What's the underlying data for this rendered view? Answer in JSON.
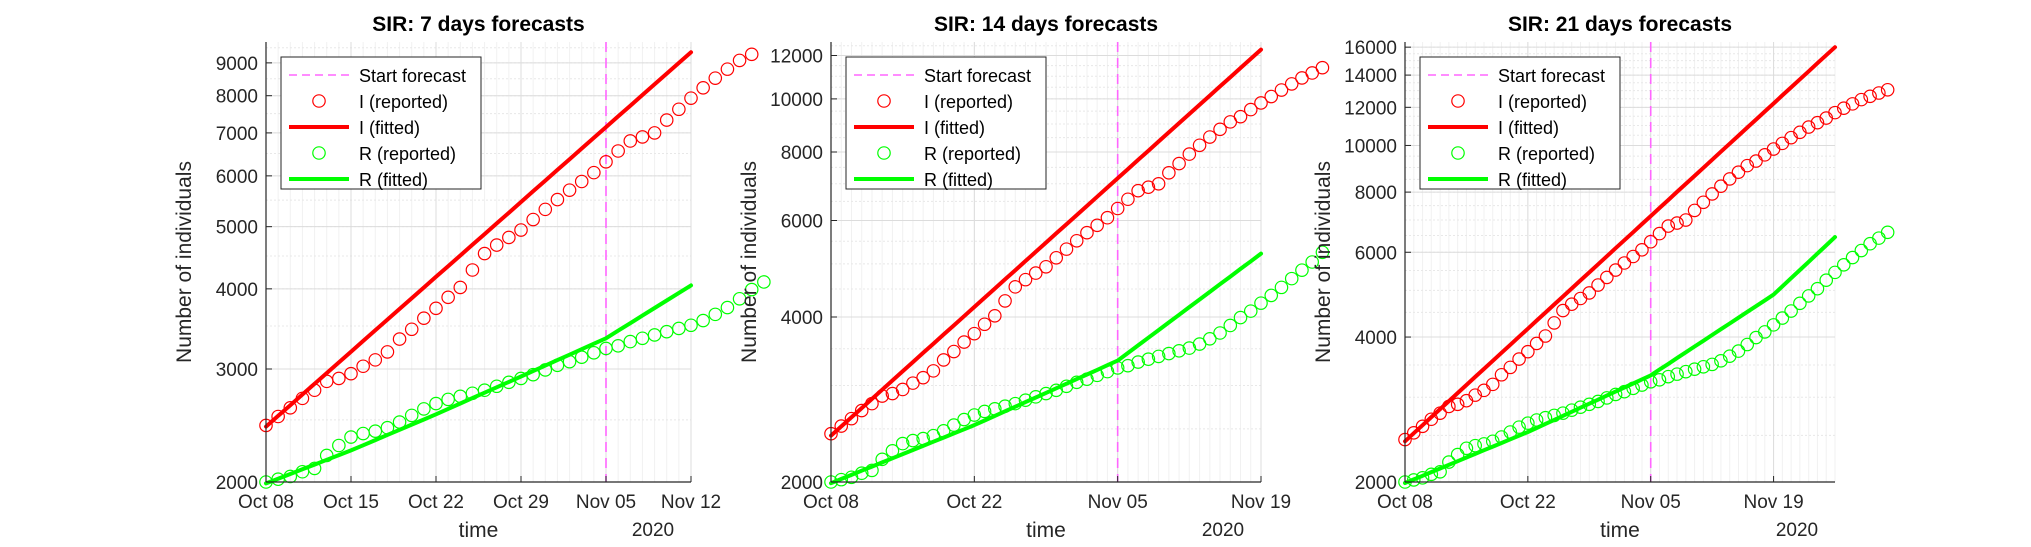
{
  "colors": {
    "infected": "#ff0000",
    "recovered": "#00ff00",
    "forecast": "#ff66ff",
    "axis": "#262626",
    "grid": "#e6e6e6"
  },
  "chart_data": [
    {
      "type": "line",
      "title": "SIR: 7 days forecasts",
      "xlabel": "time",
      "ylabel": "Number of individuals",
      "x_year_label": "2020",
      "yscale": "log",
      "xlim": [
        "2020-10-08",
        "2020-11-12"
      ],
      "ylim": [
        2000,
        9700
      ],
      "xticks": [
        "2020-10-08",
        "2020-10-15",
        "2020-10-22",
        "2020-10-29",
        "2020-11-05",
        "2020-11-12"
      ],
      "xtick_labels": [
        "Oct 08",
        "Oct 15",
        "Oct 22",
        "Oct 29",
        "Nov 05",
        "Nov 12"
      ],
      "yticks": [
        2000,
        3000,
        4000,
        5000,
        6000,
        7000,
        8000,
        9000
      ],
      "ytick_labels": [
        "2000",
        "3000",
        "4000",
        "5000",
        "6000",
        "7000",
        "8000",
        "9000"
      ],
      "forecast_start": "2020-11-05",
      "legend_position": "top-left",
      "legend": [
        "Start forecast",
        "I (reported)",
        "I (fitted)",
        "R (reported)",
        "R (fitted)"
      ],
      "series": [
        {
          "name": "I (reported)",
          "style": "markers",
          "color_key": "infected",
          "x_start": "2020-10-08",
          "values": [
            2450,
            2530,
            2610,
            2700,
            2780,
            2870,
            2900,
            2950,
            3030,
            3100,
            3190,
            3340,
            3460,
            3600,
            3730,
            3880,
            4020,
            4280,
            4540,
            4680,
            4810,
            4940,
            5130,
            5320,
            5510,
            5700,
            5880,
            6070,
            6310,
            6560,
            6800,
            6900,
            7000,
            7330,
            7620,
            7930,
            8230,
            8520,
            8800,
            9080,
            9280
          ]
        },
        {
          "name": "I (fitted)",
          "style": "line",
          "color_key": "infected",
          "x": [
            "2020-10-08",
            "2020-11-12"
          ],
          "values": [
            2440,
            9350
          ]
        },
        {
          "name": "R (reported)",
          "style": "markers",
          "color_key": "recovered",
          "x_start": "2020-10-08",
          "values": [
            2000,
            2020,
            2040,
            2075,
            2100,
            2200,
            2280,
            2350,
            2380,
            2400,
            2430,
            2480,
            2540,
            2600,
            2650,
            2690,
            2720,
            2750,
            2780,
            2820,
            2860,
            2900,
            2940,
            2990,
            3040,
            3080,
            3130,
            3180,
            3230,
            3260,
            3310,
            3350,
            3390,
            3430,
            3470,
            3510,
            3570,
            3650,
            3740,
            3860,
            3990,
            4100
          ]
        },
        {
          "name": "R (fitted)",
          "style": "line",
          "color_key": "recovered",
          "x": [
            "2020-10-08",
            "2020-10-15",
            "2020-10-22",
            "2020-10-29",
            "2020-11-05",
            "2020-11-12"
          ],
          "values": [
            1990,
            2240,
            2550,
            2920,
            3350,
            4050
          ]
        }
      ]
    },
    {
      "type": "line",
      "title": "SIR: 14 days forecasts",
      "xlabel": "time",
      "ylabel": "Number of individuals",
      "x_year_label": "2020",
      "yscale": "log",
      "xlim": [
        "2020-10-08",
        "2020-11-19"
      ],
      "ylim": [
        2000,
        12700
      ],
      "xticks": [
        "2020-10-08",
        "2020-10-22",
        "2020-11-05",
        "2020-11-19"
      ],
      "xtick_labels": [
        "Oct 08",
        "Oct 22",
        "Nov 05",
        "Nov 19"
      ],
      "yticks": [
        2000,
        4000,
        6000,
        8000,
        10000,
        12000
      ],
      "ytick_labels": [
        "2000",
        "4000",
        "6000",
        "8000",
        "10000",
        "12000"
      ],
      "forecast_start": "2020-11-05",
      "legend_position": "top-left",
      "legend": [
        "Start forecast",
        "I (reported)",
        "I (fitted)",
        "R (reported)",
        "R (fitted)"
      ],
      "series": [
        {
          "name": "I (reported)",
          "style": "markers",
          "color_key": "infected",
          "x_start": "2020-10-08",
          "values": [
            2450,
            2530,
            2610,
            2700,
            2780,
            2870,
            2900,
            2950,
            3030,
            3100,
            3190,
            3340,
            3460,
            3600,
            3730,
            3880,
            4020,
            4280,
            4540,
            4680,
            4810,
            4940,
            5130,
            5320,
            5510,
            5700,
            5880,
            6070,
            6310,
            6560,
            6800,
            6900,
            7000,
            7330,
            7620,
            7930,
            8230,
            8520,
            8800,
            9080,
            9280,
            9560,
            9830,
            10100,
            10380,
            10650,
            10920,
            11150,
            11400
          ]
        },
        {
          "name": "I (fitted)",
          "style": "line",
          "color_key": "infected",
          "x": [
            "2020-10-08",
            "2020-11-19"
          ],
          "values": [
            2430,
            12300
          ]
        },
        {
          "name": "R (reported)",
          "style": "markers",
          "color_key": "recovered",
          "x_start": "2020-10-08",
          "values": [
            2000,
            2020,
            2040,
            2075,
            2100,
            2200,
            2280,
            2350,
            2380,
            2400,
            2430,
            2480,
            2540,
            2600,
            2650,
            2690,
            2720,
            2750,
            2780,
            2820,
            2860,
            2900,
            2940,
            2990,
            3040,
            3080,
            3130,
            3180,
            3230,
            3260,
            3310,
            3350,
            3390,
            3430,
            3470,
            3510,
            3570,
            3650,
            3740,
            3860,
            3990,
            4100,
            4240,
            4380,
            4530,
            4700,
            4870,
            5040,
            5250
          ]
        },
        {
          "name": "R (fitted)",
          "style": "line",
          "color_key": "recovered",
          "x": [
            "2020-10-08",
            "2020-10-22",
            "2020-11-05",
            "2020-11-19"
          ],
          "values": [
            1990,
            2540,
            3330,
            5220
          ]
        }
      ]
    },
    {
      "type": "line",
      "title": "SIR: 21 days forecasts",
      "xlabel": "time",
      "ylabel": "Number of individuals",
      "x_year_label": "2020",
      "yscale": "log",
      "xlim": [
        "2020-10-08",
        "2020-11-26"
      ],
      "ylim": [
        2000,
        16400
      ],
      "xticks": [
        "2020-10-08",
        "2020-10-22",
        "2020-11-05",
        "2020-11-19"
      ],
      "xtick_labels": [
        "Oct 08",
        "Oct 22",
        "Nov 05",
        "Nov 19"
      ],
      "yticks": [
        2000,
        4000,
        6000,
        8000,
        10000,
        12000,
        14000,
        16000
      ],
      "ytick_labels": [
        "2000",
        "4000",
        "6000",
        "8000",
        "10000",
        "12000",
        "14000",
        "16000"
      ],
      "forecast_start": "2020-11-05",
      "legend_position": "top-left",
      "legend": [
        "Start forecast",
        "I (reported)",
        "I (fitted)",
        "R (reported)",
        "R (fitted)"
      ],
      "series": [
        {
          "name": "I (reported)",
          "style": "markers",
          "color_key": "infected",
          "x_start": "2020-10-08",
          "values": [
            2450,
            2530,
            2610,
            2700,
            2780,
            2870,
            2900,
            2950,
            3030,
            3100,
            3190,
            3340,
            3460,
            3600,
            3730,
            3880,
            4020,
            4280,
            4540,
            4680,
            4810,
            4940,
            5130,
            5320,
            5510,
            5700,
            5880,
            6070,
            6310,
            6560,
            6800,
            6900,
            7000,
            7330,
            7620,
            7930,
            8230,
            8520,
            8800,
            9080,
            9280,
            9560,
            9830,
            10100,
            10380,
            10650,
            10920,
            11150,
            11400,
            11700,
            11950,
            12200,
            12450,
            12650,
            12850,
            13050
          ]
        },
        {
          "name": "I (fitted)",
          "style": "line",
          "color_key": "infected",
          "x": [
            "2020-10-08",
            "2020-11-26"
          ],
          "values": [
            2430,
            16000
          ]
        },
        {
          "name": "R (reported)",
          "style": "markers",
          "color_key": "recovered",
          "x_start": "2020-10-08",
          "values": [
            2000,
            2020,
            2040,
            2075,
            2100,
            2200,
            2280,
            2350,
            2380,
            2400,
            2430,
            2480,
            2540,
            2600,
            2650,
            2690,
            2720,
            2750,
            2780,
            2820,
            2860,
            2900,
            2940,
            2990,
            3040,
            3080,
            3130,
            3180,
            3230,
            3260,
            3310,
            3350,
            3390,
            3430,
            3470,
            3510,
            3570,
            3650,
            3740,
            3860,
            3990,
            4100,
            4240,
            4380,
            4530,
            4700,
            4870,
            5040,
            5250,
            5450,
            5650,
            5850,
            6050,
            6250,
            6420,
            6600
          ]
        },
        {
          "name": "R (fitted)",
          "style": "line",
          "color_key": "recovered",
          "x": [
            "2020-10-08",
            "2020-10-22",
            "2020-11-05",
            "2020-11-19",
            "2020-11-26"
          ],
          "values": [
            1990,
            2540,
            3330,
            4900,
            6450
          ]
        }
      ]
    }
  ]
}
